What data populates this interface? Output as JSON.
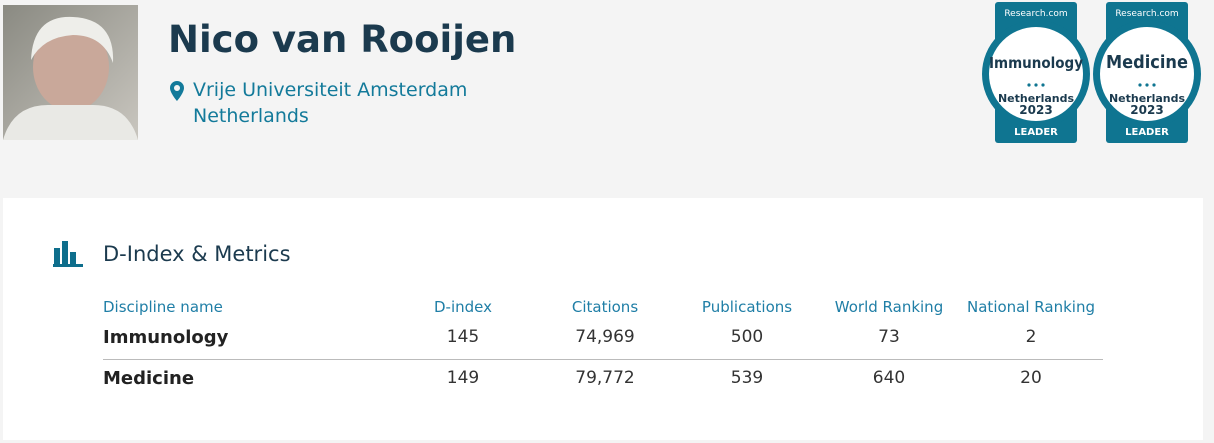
{
  "profile": {
    "name": "Nico van Rooijen",
    "affiliation": [
      "Vrije Universiteit Amsterdam",
      "Netherlands"
    ]
  },
  "badges": [
    {
      "source": "Research.com",
      "discipline": "Immunology",
      "country": "Netherlands",
      "year": "2023",
      "rank": "LEADER"
    },
    {
      "source": "Research.com",
      "discipline": "Medicine",
      "country": "Netherlands",
      "year": "2023",
      "rank": "LEADER"
    }
  ],
  "metrics": {
    "title": "D-Index & Metrics",
    "table": {
      "header": [
        "Discipline name",
        "D-index",
        "Citations",
        "Publications",
        "World Ranking",
        "National Ranking"
      ],
      "rows": [
        [
          "Immunology",
          "145",
          "74,969",
          "500",
          "73",
          "2"
        ],
        [
          "Medicine",
          "149",
          "79,772",
          "539",
          "640",
          "20"
        ]
      ]
    }
  }
}
